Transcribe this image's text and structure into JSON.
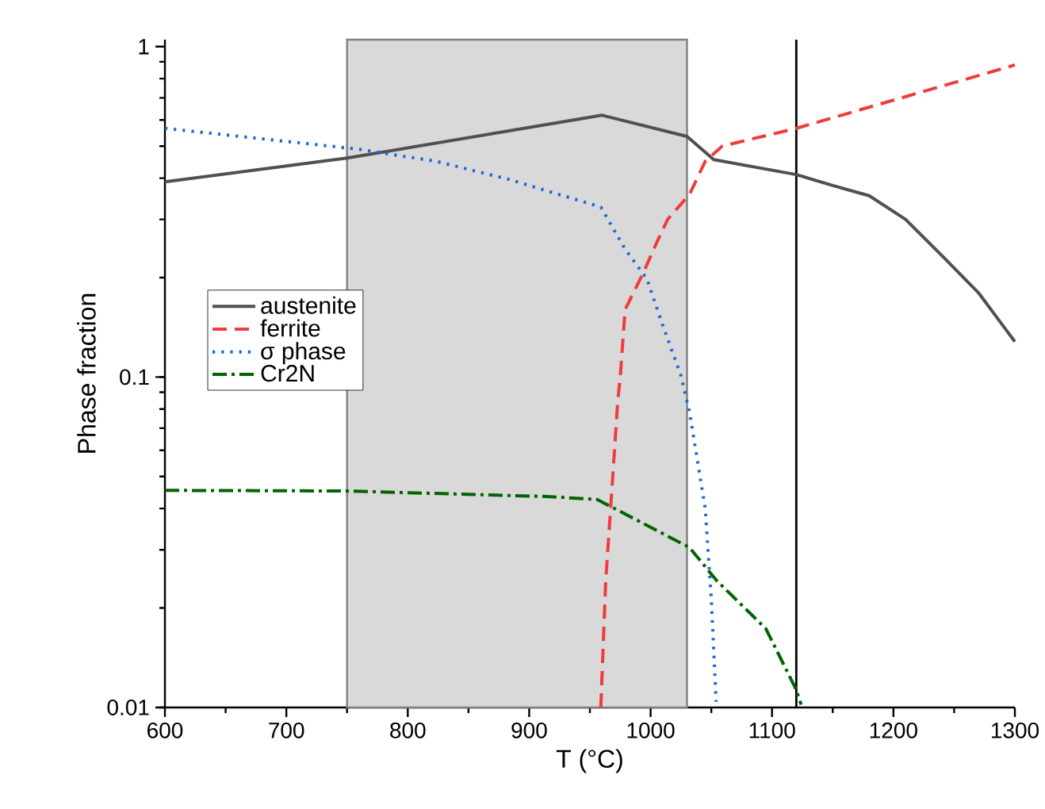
{
  "chart_data": {
    "type": "line",
    "xlabel": "T (°C)",
    "ylabel": "Phase fraction",
    "log": "y",
    "xlim": [
      600,
      1300
    ],
    "xticks": [
      600,
      700,
      800,
      900,
      1000,
      1100,
      1200,
      1300
    ],
    "ylim": [
      0.01,
      1.05
    ],
    "yticks": [
      0.01,
      0.1,
      1
    ],
    "legend": "left",
    "grid": false,
    "marker": "none",
    "series": [
      {
        "name": "austenite",
        "color": "#505050",
        "line_style": "solid",
        "x": [
          600,
          750,
          960,
          1030,
          1052,
          1120,
          1150,
          1180,
          1210,
          1240,
          1270,
          1300
        ],
        "values": [
          0.39,
          0.46,
          0.62,
          0.535,
          0.455,
          0.41,
          0.38,
          0.354,
          0.3,
          0.233,
          0.18,
          0.128
        ]
      },
      {
        "name": "ferrite",
        "color": "#f03c3c",
        "line_style": "dashed",
        "x": [
          959,
          963,
          968,
          973,
          975,
          979,
          994,
          1005,
          1014,
          1032,
          1045,
          1059,
          1120,
          1300
        ],
        "values": [
          0.01,
          0.024,
          0.045,
          0.085,
          0.1,
          0.16,
          0.207,
          0.255,
          0.3,
          0.357,
          0.45,
          0.5,
          0.566,
          0.88
        ]
      },
      {
        "name": "σ phase",
        "color": "#1a66d9",
        "line_style": "dotted",
        "x": [
          600,
          758,
          823,
          884,
          959,
          979,
          997,
          1009,
          1025,
          1032,
          1045,
          1050,
          1054
        ],
        "values": [
          0.566,
          0.49,
          0.45,
          0.396,
          0.327,
          0.244,
          0.198,
          0.147,
          0.101,
          0.0785,
          0.04,
          0.0213,
          0.0104
        ]
      },
      {
        "name": "Cr2N",
        "color": "#006400",
        "line_style": "dashdot",
        "x": [
          600,
          750,
          914,
          956,
          1032,
          1054,
          1095,
          1120,
          1124
        ],
        "values": [
          0.0454,
          0.0452,
          0.0435,
          0.0426,
          0.0305,
          0.0243,
          0.0173,
          0.0113,
          0.0102
        ]
      }
    ],
    "bands": [
      {
        "axis": "x",
        "from": 750,
        "to": 1030,
        "color": "#d9d9d9"
      }
    ],
    "ref_lines": [
      {
        "axis": "x",
        "value": 1120,
        "color": "#000000"
      }
    ]
  }
}
